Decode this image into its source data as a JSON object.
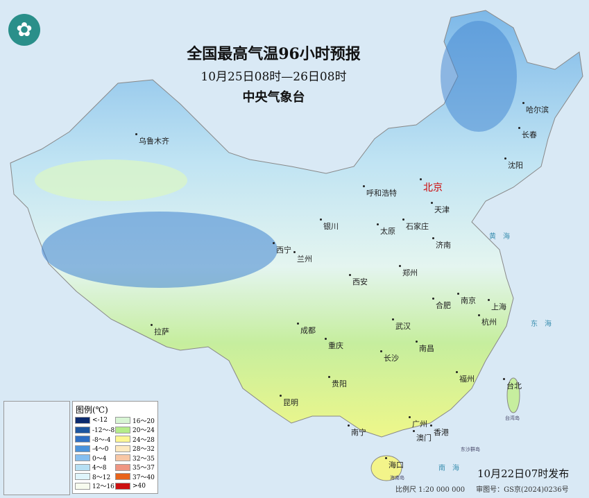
{
  "title": {
    "main": "全国最高气温96小时预报",
    "period": "10月25日08时—26日08时",
    "issuer": "中央气象台"
  },
  "logo_icon": "cma-logo",
  "cities": {
    "wulumuqi": "乌鲁木齐",
    "lasa": "拉萨",
    "xining": "西宁",
    "lanzhou": "兰州",
    "yinchuan": "银川",
    "huhehaote": "呼和浩特",
    "beijing": "北京",
    "tianjin": "天津",
    "shijiazhuang": "石家庄",
    "taiyuan": "太原",
    "jinan": "济南",
    "zhengzhou": "郑州",
    "xian": "西安",
    "chengdu": "成都",
    "chongqing": "重庆",
    "guiyang": "贵阳",
    "kunming": "昆明",
    "nanning": "南宁",
    "guangzhou": "广州",
    "xianggang": "香港",
    "aomen": "澳门",
    "haikou": "海口",
    "changsha": "长沙",
    "wuhan": "武汉",
    "nanchang": "南昌",
    "hefei": "合肥",
    "nanjing": "南京",
    "shanghai": "上海",
    "hangzhou": "杭州",
    "fuzhou": "福州",
    "taibei": "台北",
    "shenyang": "沈阳",
    "changchun": "长春",
    "haerbin": "哈尔滨"
  },
  "seas": {
    "huanghai": "黄海",
    "donghai": "东海",
    "nanhai": "南海"
  },
  "islands": {
    "taiwan": "台湾岛",
    "dongsha": "东沙群岛",
    "hainan": "海南岛"
  },
  "legend": {
    "title": "图例(℃)",
    "items": [
      {
        "label": "<-12",
        "color": "#0b2a6e"
      },
      {
        "label": "-12～-8",
        "color": "#1d56a0"
      },
      {
        "label": "-8～-4",
        "color": "#2e6fc4"
      },
      {
        "label": "-4～0",
        "color": "#4a93dc"
      },
      {
        "label": "0～4",
        "color": "#86bff0"
      },
      {
        "label": "4～8",
        "color": "#b7e0f4"
      },
      {
        "label": "8～12",
        "color": "#dff4fb"
      },
      {
        "label": "12～16",
        "color": "#f7fbee"
      },
      {
        "label": "16～20",
        "color": "#d8f5d4"
      },
      {
        "label": "20～24",
        "color": "#b5ec8a"
      },
      {
        "label": "24～28",
        "color": "#fdf794"
      },
      {
        "label": "28～32",
        "color": "#fde9c0"
      },
      {
        "label": "32～35",
        "color": "#f8c7a5"
      },
      {
        "label": "35～37",
        "color": "#ef9683"
      },
      {
        "label": "37～40",
        "color": "#e8641c"
      },
      {
        "label": ">40",
        "color": "#cc1111"
      }
    ]
  },
  "issue_time": "10月22日07时发布",
  "footer": {
    "scale": "比例尺 1:20 000 000",
    "approval": "审图号：GS京(2024)0236号"
  }
}
